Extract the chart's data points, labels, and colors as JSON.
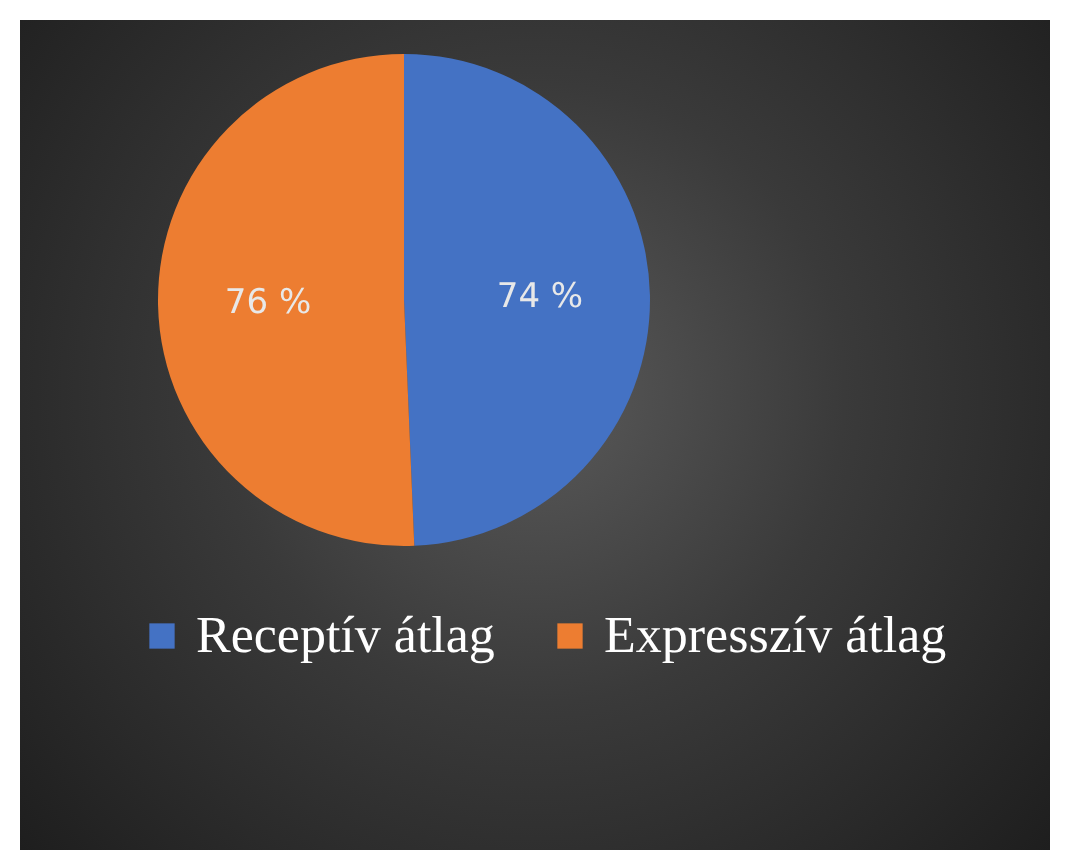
{
  "chart_data": {
    "type": "pie",
    "categories": [
      "Receptív átlag",
      "Expresszív átlag"
    ],
    "values": [
      74,
      76
    ],
    "colors": [
      "#4472c4",
      "#ed7d31"
    ],
    "value_labels": [
      "74 %",
      "76 %"
    ],
    "legend": "bottom"
  }
}
